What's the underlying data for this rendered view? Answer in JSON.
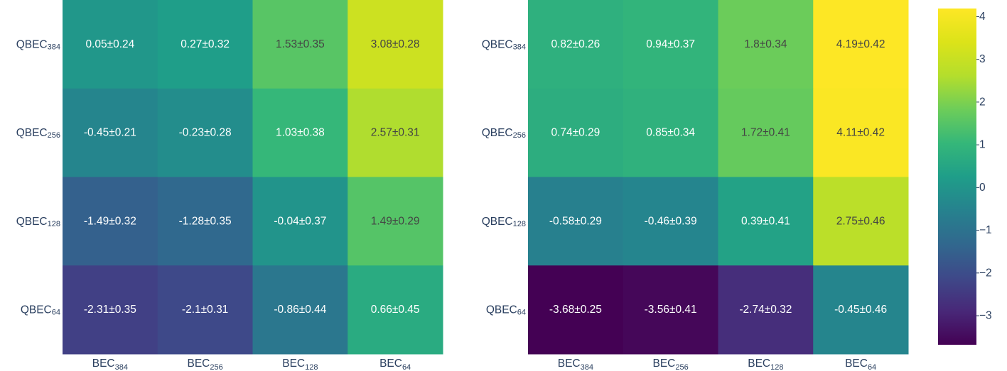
{
  "chart_data": [
    {
      "type": "heatmap",
      "x_categories": [
        {
          "base": "BEC",
          "sub": "384"
        },
        {
          "base": "BEC",
          "sub": "256"
        },
        {
          "base": "BEC",
          "sub": "128"
        },
        {
          "base": "BEC",
          "sub": "64"
        }
      ],
      "y_categories": [
        {
          "base": "QBEC",
          "sub": "384"
        },
        {
          "base": "QBEC",
          "sub": "256"
        },
        {
          "base": "QBEC",
          "sub": "128"
        },
        {
          "base": "QBEC",
          "sub": "64"
        }
      ],
      "values": [
        [
          0.05,
          0.27,
          1.53,
          3.08
        ],
        [
          -0.45,
          -0.23,
          1.03,
          2.57
        ],
        [
          -1.49,
          -1.28,
          -0.04,
          1.49
        ],
        [
          -2.31,
          -2.1,
          -0.86,
          0.66
        ]
      ],
      "labels": [
        [
          "0.05±0.24",
          "0.27±0.32",
          "1.53±0.35",
          "3.08±0.28"
        ],
        [
          "-0.45±0.21",
          "-0.23±0.28",
          "1.03±0.38",
          "2.57±0.31"
        ],
        [
          "-1.49±0.32",
          "-1.28±0.35",
          "-0.04±0.37",
          "1.49±0.29"
        ],
        [
          "-2.31±0.35",
          "-2.1±0.31",
          "-0.86±0.44",
          "0.66±0.45"
        ]
      ]
    },
    {
      "type": "heatmap",
      "x_categories": [
        {
          "base": "BEC",
          "sub": "384"
        },
        {
          "base": "BEC",
          "sub": "256"
        },
        {
          "base": "BEC",
          "sub": "128"
        },
        {
          "base": "BEC",
          "sub": "64"
        }
      ],
      "y_categories": [
        {
          "base": "QBEC",
          "sub": "384"
        },
        {
          "base": "QBEC",
          "sub": "256"
        },
        {
          "base": "QBEC",
          "sub": "128"
        },
        {
          "base": "QBEC",
          "sub": "64"
        }
      ],
      "values": [
        [
          0.82,
          0.94,
          1.8,
          4.19
        ],
        [
          0.74,
          0.85,
          1.72,
          4.11
        ],
        [
          -0.58,
          -0.46,
          0.39,
          2.75
        ],
        [
          -3.68,
          -3.56,
          -2.74,
          -0.45
        ]
      ],
      "labels": [
        [
          "0.82±0.26",
          "0.94±0.37",
          "1.8±0.34",
          "4.19±0.42"
        ],
        [
          "0.74±0.29",
          "0.85±0.34",
          "1.72±0.41",
          "4.11±0.42"
        ],
        [
          "-0.58±0.29",
          "-0.46±0.39",
          "0.39±0.41",
          "2.75±0.46"
        ],
        [
          "-3.68±0.25",
          "-3.56±0.41",
          "-2.74±0.32",
          "-0.45±0.46"
        ]
      ]
    }
  ],
  "colorbar": {
    "colorscale": "viridis",
    "range": [
      -3.68,
      4.19
    ],
    "ticks": [
      {
        "value": 4,
        "label": "4"
      },
      {
        "value": 3,
        "label": "3"
      },
      {
        "value": 2,
        "label": "2"
      },
      {
        "value": 1,
        "label": "1"
      },
      {
        "value": 0,
        "label": "0"
      },
      {
        "value": -1,
        "label": "−1"
      },
      {
        "value": -2,
        "label": "−2"
      },
      {
        "value": -3,
        "label": "−3"
      }
    ]
  }
}
